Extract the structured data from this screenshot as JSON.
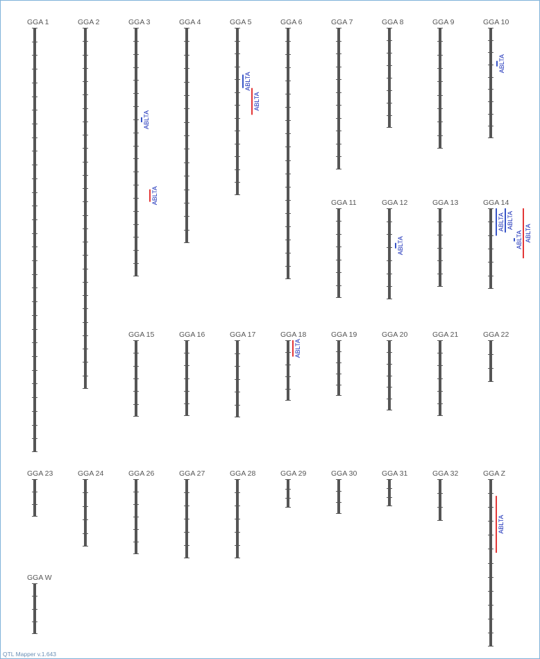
{
  "app": {
    "footer": "QTL Mapper v.1.643"
  },
  "colors": {
    "chromosome": "#555555",
    "qtl_red": "#e02020",
    "qtl_blue": "#2040c0",
    "label": "#555555",
    "qtl_text": "#1a2fb8"
  },
  "chromosomes": [
    {
      "id": "GGA 1",
      "ticks": 30
    },
    {
      "id": "GGA 2",
      "ticks": 26
    },
    {
      "id": "GGA 3",
      "ticks": 18,
      "qtls": [
        {
          "trait": "ABLTA",
          "color": "blue",
          "from": 0.36,
          "to": 0.38
        },
        {
          "trait": "ABLTA",
          "color": "red",
          "from": 0.65,
          "to": 0.7
        }
      ]
    },
    {
      "id": "GGA 4",
      "ticks": 15
    },
    {
      "id": "GGA 5",
      "ticks": 12,
      "qtls": [
        {
          "trait": "ABLTA",
          "color": "blue",
          "from": 0.28,
          "to": 0.36
        },
        {
          "trait": "ABLTA",
          "color": "red",
          "from": 0.36,
          "to": 0.52
        }
      ]
    },
    {
      "id": "GGA 6",
      "ticks": 18
    },
    {
      "id": "GGA 7",
      "ticks": 10
    },
    {
      "id": "GGA 8",
      "ticks": 7
    },
    {
      "id": "GGA 9",
      "ticks": 8
    },
    {
      "id": "GGA 10",
      "ticks": 8,
      "qtls": [
        {
          "trait": "ABLTA",
          "color": "blue",
          "from": 0.3,
          "to": 0.35
        }
      ]
    },
    {
      "id": "GGA 11",
      "ticks": 6
    },
    {
      "id": "GGA 12",
      "ticks": 6,
      "qtls": [
        {
          "trait": "ABLTA",
          "color": "blue",
          "from": 0.38,
          "to": 0.44
        }
      ]
    },
    {
      "id": "GGA 13",
      "ticks": 5
    },
    {
      "id": "GGA 14",
      "ticks": 5,
      "qtls": [
        {
          "trait": "ABLTA",
          "color": "blue",
          "from": 0.0,
          "to": 0.34
        },
        {
          "trait": "ABLTA",
          "color": "blue",
          "from": 0.0,
          "to": 0.3
        },
        {
          "trait": "ABLTA",
          "color": "blue",
          "from": 0.37,
          "to": 0.41
        },
        {
          "trait": "ABLTA",
          "color": "red",
          "from": 0.0,
          "to": 0.62
        }
      ]
    },
    {
      "id": "GGA 15",
      "ticks": 5
    },
    {
      "id": "GGA 16",
      "ticks": 5
    },
    {
      "id": "GGA 17",
      "ticks": 5
    },
    {
      "id": "GGA 18",
      "ticks": 4,
      "qtls": [
        {
          "trait": "ABLTA",
          "color": "red",
          "from": 0.0,
          "to": 0.27
        }
      ]
    },
    {
      "id": "GGA 19",
      "ticks": 4
    },
    {
      "id": "GGA 20",
      "ticks": 5
    },
    {
      "id": "GGA 21",
      "ticks": 5
    },
    {
      "id": "GGA 22",
      "ticks": 2
    },
    {
      "id": "GGA 23",
      "ticks": 2
    },
    {
      "id": "GGA 24",
      "ticks": 4
    },
    {
      "id": "GGA 26",
      "ticks": 5
    },
    {
      "id": "GGA 27",
      "ticks": 5
    },
    {
      "id": "GGA 28",
      "ticks": 5
    },
    {
      "id": "GGA 29",
      "ticks": 2
    },
    {
      "id": "GGA 30",
      "ticks": 2
    },
    {
      "id": "GGA 31",
      "ticks": 2
    },
    {
      "id": "GGA 32",
      "ticks": 2
    },
    {
      "id": "GGA Z",
      "ticks": 11,
      "qtls": [
        {
          "trait": "ABLTA",
          "color": "red",
          "from": 0.1,
          "to": 0.44
        }
      ]
    },
    {
      "id": "GGA W",
      "ticks": 3
    }
  ]
}
